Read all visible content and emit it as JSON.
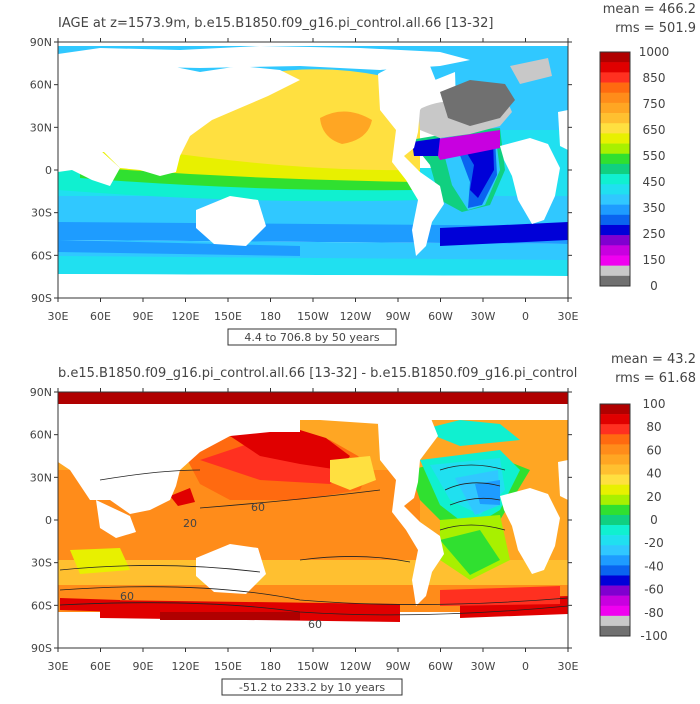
{
  "panels": [
    {
      "id": "top",
      "title": "IAGE at z=1573.9m, b.e15.B1850.f09_g16.pi_control.all.66  [13-32]",
      "mean_text": "mean = 466.2",
      "rms_text": "rms = 501.9",
      "range_text": "4.4 to 706.8 by 50 years",
      "colorbar_labels": [
        "1000",
        "850",
        "750",
        "650",
        "550",
        "450",
        "350",
        "250",
        "150",
        "0"
      ],
      "colorbar_colors": [
        "#b00000",
        "#e00000",
        "#ff3020",
        "#ff6a10",
        "#ff8c1a",
        "#ffa623",
        "#ffc030",
        "#ffe040",
        "#e8f000",
        "#a8f000",
        "#30e030",
        "#10d080",
        "#10f0d0",
        "#20e0f0",
        "#30c8ff",
        "#1e9cff",
        "#0a64f0",
        "#0000d8",
        "#8000d0",
        "#c800e0",
        "#f000f0",
        "#c8c8c8",
        "#707070"
      ],
      "lat_labels": [
        "90N",
        "60N",
        "30N",
        "0",
        "30S",
        "60S",
        "90S"
      ],
      "lon_labels": [
        "30E",
        "60E",
        "90E",
        "120E",
        "150E",
        "180",
        "150W",
        "120W",
        "90W",
        "60W",
        "30W",
        "0",
        "30E"
      ]
    },
    {
      "id": "bottom",
      "title": "b.e15.B1850.f09_g16.pi_control.all.66  [13-32]  -  b.e15.B1850.f09_g16.pi_control",
      "mean_text": "mean = 43.2",
      "rms_text": "rms = 61.68",
      "range_text": "-51.2 to 233.2 by 10 years",
      "contour_labels": [
        "60",
        "60",
        "60",
        "20"
      ],
      "colorbar_labels": [
        "100",
        "80",
        "60",
        "40",
        "20",
        "0",
        "-20",
        "-40",
        "-60",
        "-80",
        "-100"
      ],
      "colorbar_colors": [
        "#b00000",
        "#e00000",
        "#ff3020",
        "#ff6a10",
        "#ff8c1a",
        "#ffa623",
        "#ffc030",
        "#ffe040",
        "#e8f000",
        "#a8f000",
        "#30e030",
        "#10d080",
        "#10f0d0",
        "#20e0f0",
        "#30c8ff",
        "#1e9cff",
        "#0a64f0",
        "#0000d8",
        "#8000d0",
        "#c800e0",
        "#f000f0",
        "#c8c8c8",
        "#707070"
      ],
      "lat_labels": [
        "90N",
        "60N",
        "30N",
        "0",
        "30S",
        "60S",
        "90S"
      ],
      "lon_labels": [
        "30E",
        "60E",
        "90E",
        "120E",
        "150E",
        "180",
        "150W",
        "120W",
        "90W",
        "60W",
        "30W",
        "0",
        "30E"
      ]
    }
  ]
}
